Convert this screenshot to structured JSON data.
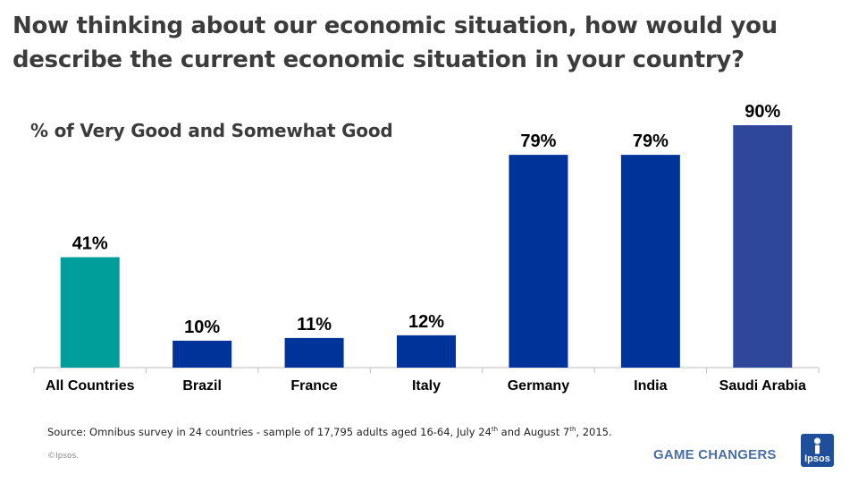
{
  "title": "Now thinking about our economic situation, how would you describe the current economic situation in your country?",
  "subtitle": "% of Very Good and Somewhat Good",
  "chart_data": {
    "type": "bar",
    "title": "Now thinking about our economic situation, how would you describe the current economic situation in your country?",
    "subtitle": "% of Very Good and Somewhat Good",
    "xlabel": "",
    "ylabel": "",
    "ylim": [
      0,
      100
    ],
    "grid": false,
    "categories": [
      "All Countries",
      "Brazil",
      "France",
      "Italy",
      "Germany",
      "India",
      "Saudi Arabia"
    ],
    "values": [
      41,
      10,
      11,
      12,
      79,
      79,
      90
    ],
    "value_labels": [
      "41%",
      "10%",
      "11%",
      "12%",
      "79%",
      "79%",
      "90%"
    ],
    "colors": [
      "#009e9a",
      "#003399",
      "#003399",
      "#003399",
      "#003399",
      "#003399",
      "#2e479a"
    ]
  },
  "footer": {
    "source_prefix": "Source: Omnibus survey in 24 countries - sample of 17,795 adults aged 16-64,  July 24",
    "source_sup1": "th",
    "source_mid": " and August 7",
    "source_sup2": "th",
    "source_suffix": ", 2015.",
    "copyright": "©Ipsos.",
    "tagline": "GAME CHANGERS",
    "logo_text": "Ipsos"
  },
  "colors": {
    "axis": "#bfbfbf",
    "title": "#3c3c3c",
    "tagline": "#4a6fa5",
    "logo": "#1f4f9a"
  }
}
